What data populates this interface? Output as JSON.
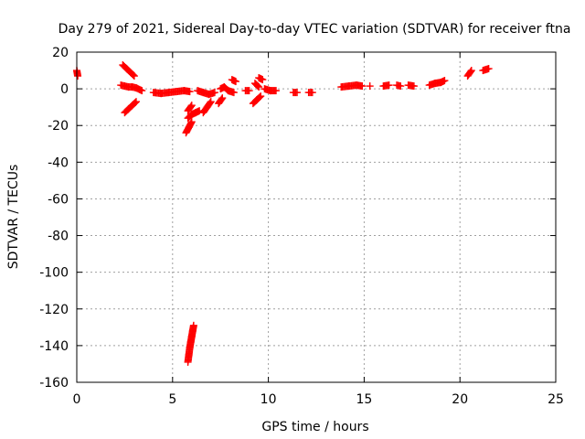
{
  "chart_data": {
    "type": "scatter",
    "title": "Day 279 of 2021, Sidereal Day-to-day VTEC variation (SDTVAR) for receiver ftna",
    "xlabel": "GPS time / hours",
    "ylabel": "SDTVAR / TECUs",
    "xlim": [
      0,
      25
    ],
    "ylim": [
      -160,
      20
    ],
    "xticks": [
      "0",
      "5",
      "10",
      "15",
      "20",
      "25"
    ],
    "yticks": [
      "20",
      "0",
      "-20",
      "-40",
      "-60",
      "-80",
      "-100",
      "-120",
      "-140",
      "-160"
    ],
    "grid": true,
    "marker": "plus",
    "marker_color": "#ff0000",
    "segments": [
      {
        "x": [
          0.0,
          0.05
        ],
        "y": [
          10,
          7
        ]
      },
      {
        "x": [
          2.4,
          2.6,
          2.8,
          3.0
        ],
        "y": [
          13,
          11,
          9,
          7
        ]
      },
      {
        "x": [
          2.3,
          2.5,
          2.7,
          2.9,
          3.1,
          3.4
        ],
        "y": [
          2,
          1.5,
          1,
          1,
          0.5,
          -1
        ]
      },
      {
        "x": [
          2.5,
          2.7,
          2.9,
          3.1
        ],
        "y": [
          -13,
          -11,
          -9,
          -7
        ]
      },
      {
        "x": [
          4.0,
          4.4,
          4.8,
          5.2,
          5.6,
          5.9
        ],
        "y": [
          -2,
          -2.5,
          -2,
          -1.5,
          -1,
          -1.5
        ]
      },
      {
        "x": [
          5.7,
          5.85,
          6.0
        ],
        "y": [
          -24,
          -21,
          -18
        ]
      },
      {
        "x": [
          5.8,
          6.0,
          6.2,
          6.4
        ],
        "y": [
          -16,
          -14,
          -13,
          -12
        ]
      },
      {
        "x": [
          5.8,
          6.0
        ],
        "y": [
          -12,
          -9
        ]
      },
      {
        "x": [
          5.8,
          5.85,
          5.9,
          5.95,
          6.0,
          6.05,
          6.1
        ],
        "y": [
          -149,
          -145,
          -141,
          -138,
          -135,
          -132,
          -129
        ]
      },
      {
        "x": [
          6.3,
          6.6,
          6.9,
          7.2
        ],
        "y": [
          -1,
          -2,
          -3,
          -2
        ]
      },
      {
        "x": [
          6.6,
          6.8,
          7.0
        ],
        "y": [
          -13,
          -10,
          -7
        ]
      },
      {
        "x": [
          7.4,
          7.6
        ],
        "y": [
          -8,
          -5
        ]
      },
      {
        "x": [
          7.5,
          7.7,
          7.9,
          8.2
        ],
        "y": [
          0,
          1,
          -1,
          -2
        ]
      },
      {
        "x": [
          8.1,
          8.3
        ],
        "y": [
          5,
          4
        ]
      },
      {
        "x": [
          8.8,
          9.0
        ],
        "y": [
          -1,
          -1
        ]
      },
      {
        "x": [
          9.2,
          9.4,
          9.6
        ],
        "y": [
          -8,
          -6,
          -4
        ]
      },
      {
        "x": [
          9.3,
          9.5
        ],
        "y": [
          3,
          1
        ]
      },
      {
        "x": [
          9.5,
          9.7
        ],
        "y": [
          6,
          5
        ]
      },
      {
        "x": [
          9.8,
          10.1,
          10.4
        ],
        "y": [
          0,
          -1,
          -1
        ]
      },
      {
        "x": [
          11.3,
          11.5
        ],
        "y": [
          -2,
          -2
        ]
      },
      {
        "x": [
          12.1,
          12.3
        ],
        "y": [
          -2,
          -2
        ]
      },
      {
        "x": [
          13.8,
          14.2,
          14.6,
          14.9
        ],
        "y": [
          1,
          1.5,
          2,
          1.5
        ]
      },
      {
        "x": [
          15.3
        ],
        "y": [
          1.5
        ]
      },
      {
        "x": [
          16.0,
          16.3
        ],
        "y": [
          1.5,
          2
        ]
      },
      {
        "x": [
          16.7,
          16.9
        ],
        "y": [
          2,
          1.5
        ]
      },
      {
        "x": [
          17.3,
          17.6
        ],
        "y": [
          2,
          1.5
        ]
      },
      {
        "x": [
          18.4,
          18.7,
          19.0,
          19.2
        ],
        "y": [
          2,
          3,
          3.5,
          4.5
        ]
      },
      {
        "x": [
          20.4,
          20.6
        ],
        "y": [
          7,
          10
        ]
      },
      {
        "x": [
          21.2,
          21.5
        ],
        "y": [
          10,
          11
        ]
      }
    ]
  }
}
